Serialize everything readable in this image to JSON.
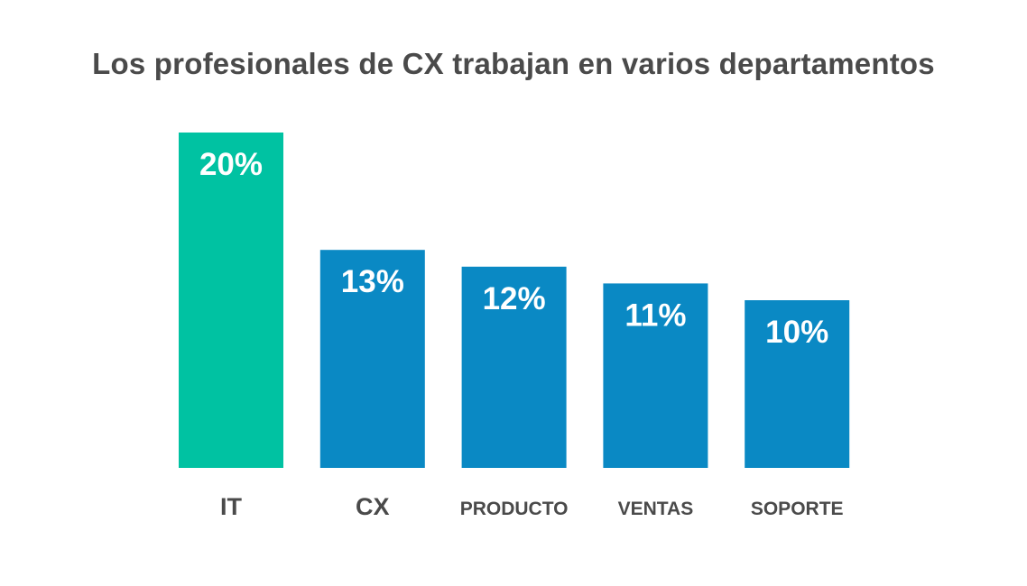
{
  "chart_data": {
    "type": "bar",
    "title": "Los profesionales de CX trabajan en varios departamentos",
    "xlabel": "",
    "ylabel": "",
    "categories": [
      "IT",
      "CX",
      "PRODUCTO",
      "VENTAS",
      "SOPORTE"
    ],
    "values": [
      20,
      13,
      12,
      11,
      10
    ],
    "value_labels": [
      "20%",
      "13%",
      "12%",
      "11%",
      "10%"
    ],
    "ylim": [
      0,
      20
    ],
    "grid": false,
    "legend": "none",
    "colors": {
      "highlight": "#00c2a2",
      "bar": "#0a89c4",
      "value_text": "#ffffff",
      "category_text": "#4a4a4a",
      "title_text": "#4a4a4a"
    }
  }
}
